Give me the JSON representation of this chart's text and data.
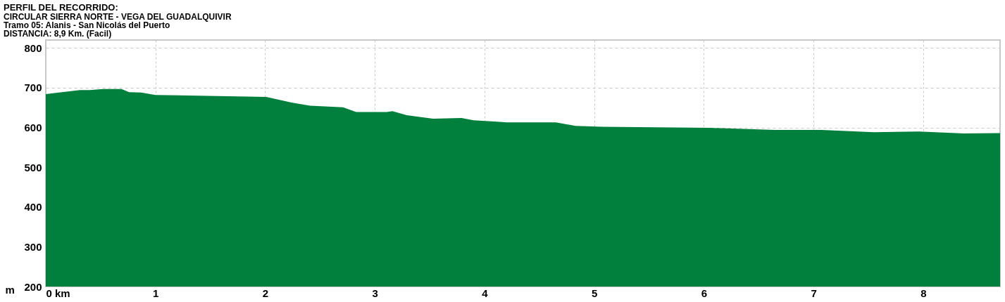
{
  "chart_data": {
    "type": "area",
    "title": "PERFIL DEL RECORRIDO:",
    "subtitle": "CIRCULAR SIERRA NORTE - VEGA DEL GUADALQUIVIR",
    "annotations": [
      "Tramo 05: Alanis - San Nicolás del Puerto",
      "DISTANCIA: 8,9 Km. (Facil)"
    ],
    "ylabel": "m",
    "x": [
      0,
      0.12,
      0.31,
      0.4,
      0.52,
      0.69,
      0.76,
      0.87,
      1.0,
      2.01,
      2.24,
      2.41,
      2.71,
      2.83,
      3.11,
      3.16,
      3.29,
      3.53,
      3.79,
      3.9,
      4.14,
      4.2,
      4.65,
      4.83,
      5.07,
      6.06,
      6.65,
      7.07,
      7.55,
      7.96,
      8.37,
      8.7
    ],
    "series": [
      {
        "color": "#007f3d",
        "values": [
          684,
          688,
          694,
          694,
          697,
          697,
          689,
          688,
          682,
          677,
          663,
          655,
          651,
          639,
          639,
          641,
          631,
          622,
          624,
          618,
          614,
          613,
          613,
          604,
          602,
          599,
          594,
          594,
          588,
          590,
          585,
          586
        ]
      }
    ],
    "xlim": [
      0,
      8.7
    ],
    "xticks": [
      {
        "value": 0,
        "label": "0 km"
      },
      1,
      2,
      3,
      4,
      5,
      6,
      7,
      8
    ],
    "ylim": [
      200,
      820
    ],
    "yticks": [
      200,
      300,
      400,
      500,
      600,
      700,
      800
    ],
    "grid": true
  }
}
